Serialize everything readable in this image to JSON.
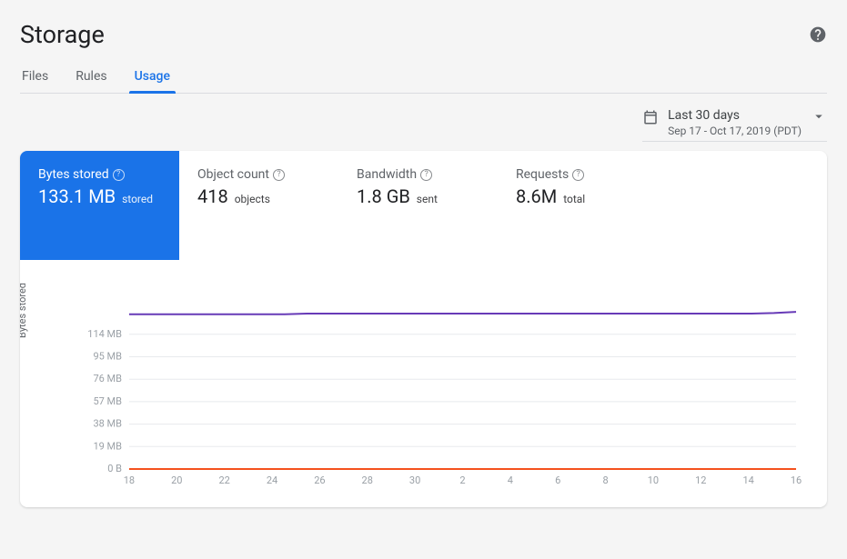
{
  "header": {
    "title": "Storage"
  },
  "tabs": [
    {
      "label": "Files",
      "active": false
    },
    {
      "label": "Rules",
      "active": false
    },
    {
      "label": "Usage",
      "active": true
    }
  ],
  "date_range": {
    "label": "Last 30 days",
    "sub": "Sep 17 - Oct 17, 2019 (PDT)"
  },
  "metrics": [
    {
      "label": "Bytes stored",
      "value": "133.1 MB",
      "unit": "stored",
      "active": true
    },
    {
      "label": "Object count",
      "value": "418",
      "unit": "objects",
      "active": false
    },
    {
      "label": "Bandwidth",
      "value": "1.8 GB",
      "unit": "sent",
      "active": false
    },
    {
      "label": "Requests",
      "value": "8.6M",
      "unit": "total",
      "active": false
    }
  ],
  "chart": {
    "type": "line",
    "y_axis_label": "Bytes stored",
    "ylim": [
      0,
      140
    ],
    "yticks": [
      {
        "v": 0,
        "label": "0 B"
      },
      {
        "v": 19,
        "label": "19 MB"
      },
      {
        "v": 38,
        "label": "38 MB"
      },
      {
        "v": 57,
        "label": "57 MB"
      },
      {
        "v": 76,
        "label": "76 MB"
      },
      {
        "v": 95,
        "label": "95 MB"
      },
      {
        "v": 114,
        "label": "114 MB"
      }
    ],
    "xticks": [
      "18",
      "20",
      "22",
      "24",
      "26",
      "28",
      "30",
      "2",
      "4",
      "6",
      "8",
      "10",
      "12",
      "14",
      "16"
    ],
    "series": [
      {
        "name": "bytes-stored",
        "color": "#673ab7",
        "values": [
          131,
          131,
          131,
          131,
          131,
          131,
          131,
          131,
          131.5,
          131.5,
          131.5,
          131.5,
          131.5,
          131.5,
          131.5,
          131.5,
          131.5,
          131.5,
          131.5,
          131.5,
          131.5,
          131.5,
          131.5,
          131.5,
          131.5,
          131.5,
          131.5,
          131.5,
          131.5,
          132,
          133
        ]
      },
      {
        "name": "baseline",
        "color": "#f4511e",
        "values": [
          0,
          0,
          0,
          0,
          0,
          0,
          0,
          0,
          0,
          0,
          0,
          0,
          0,
          0,
          0,
          0,
          0,
          0,
          0,
          0,
          0,
          0,
          0,
          0,
          0,
          0,
          0,
          0,
          0,
          0,
          0
        ]
      }
    ],
    "grid_color": "#e8eaed",
    "background_color": "#ffffff",
    "tick_label_color": "#9aa0a6",
    "label_fontsize": 11
  },
  "colors": {
    "accent": "#1a73e8",
    "text_primary": "#202124",
    "text_secondary": "#5f6368"
  }
}
